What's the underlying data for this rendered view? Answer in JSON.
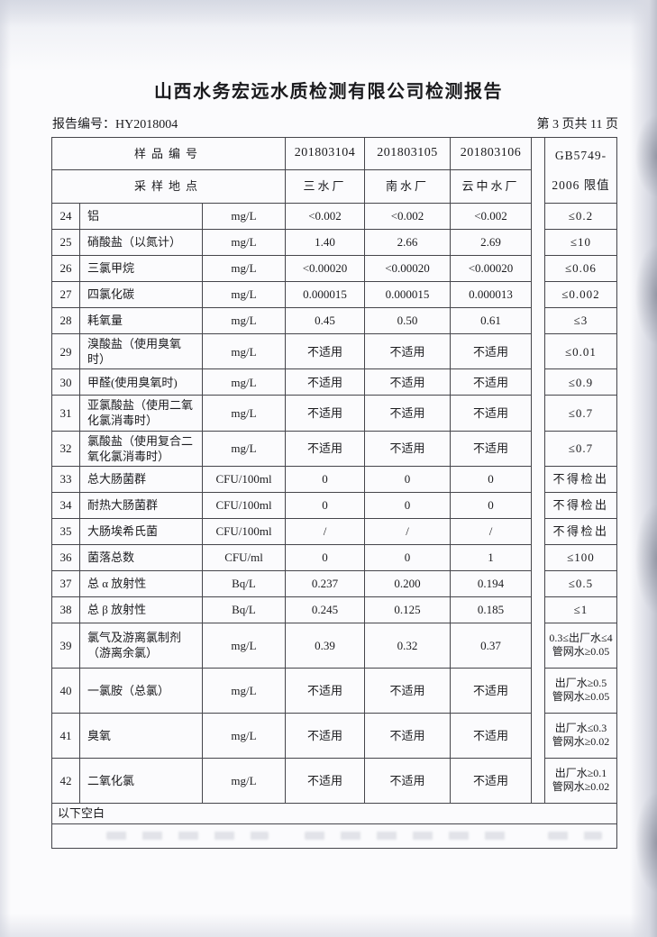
{
  "page": {
    "title": "山西水务宏远水质检测有限公司检测报告",
    "report_no_label": "报告编号：",
    "report_no": "HY2018004",
    "page_indicator": "第 3 页共 11 页"
  },
  "table": {
    "header": {
      "sample_id_label": "样品编号",
      "location_label": "采样地点",
      "sample_ids": [
        "201803104",
        "201803105",
        "201803106"
      ],
      "locations": [
        "三水厂",
        "南水厂",
        "云中水厂"
      ],
      "limit_line1": "GB5749-",
      "limit_line2": "2006 限值"
    },
    "rows": [
      {
        "no": "24",
        "name": "铝",
        "unit": "mg/L",
        "values": [
          "<0.002",
          "<0.002",
          "<0.002"
        ],
        "limit": "≤0.2"
      },
      {
        "no": "25",
        "name": "硝酸盐（以氮计）",
        "unit": "mg/L",
        "values": [
          "1.40",
          "2.66",
          "2.69"
        ],
        "limit": "≤10"
      },
      {
        "no": "26",
        "name": "三氯甲烷",
        "unit": "mg/L",
        "values": [
          "<0.00020",
          "<0.00020",
          "<0.00020"
        ],
        "limit": "≤0.06"
      },
      {
        "no": "27",
        "name": "四氯化碳",
        "unit": "mg/L",
        "values": [
          "0.000015",
          "0.000015",
          "0.000013"
        ],
        "limit": "≤0.002"
      },
      {
        "no": "28",
        "name": "耗氧量",
        "unit": "mg/L",
        "values": [
          "0.45",
          "0.50",
          "0.61"
        ],
        "limit": "≤3"
      },
      {
        "no": "29",
        "name": "溴酸盐（使用臭氧时）",
        "unit": "mg/L",
        "values": [
          "不适用",
          "不适用",
          "不适用"
        ],
        "limit": "≤0.01"
      },
      {
        "no": "30",
        "name": "甲醛(使用臭氧时)",
        "unit": "mg/L",
        "values": [
          "不适用",
          "不适用",
          "不适用"
        ],
        "limit": "≤0.9"
      },
      {
        "no": "31",
        "name": "亚氯酸盐（使用二氧化氯消毒时）",
        "unit": "mg/L",
        "values": [
          "不适用",
          "不适用",
          "不适用"
        ],
        "limit": "≤0.7"
      },
      {
        "no": "32",
        "name": "氯酸盐（使用复合二氧化氯消毒时）",
        "unit": "mg/L",
        "values": [
          "不适用",
          "不适用",
          "不适用"
        ],
        "limit": "≤0.7"
      },
      {
        "no": "33",
        "name": "总大肠菌群",
        "unit": "CFU/100ml",
        "values": [
          "0",
          "0",
          "0"
        ],
        "limit": "不得检出",
        "limit_zh": true
      },
      {
        "no": "34",
        "name": "耐热大肠菌群",
        "unit": "CFU/100ml",
        "values": [
          "0",
          "0",
          "0"
        ],
        "limit": "不得检出",
        "limit_zh": true
      },
      {
        "no": "35",
        "name": "大肠埃希氏菌",
        "unit": "CFU/100ml",
        "values": [
          "/",
          "/",
          "/"
        ],
        "limit": "不得检出",
        "limit_zh": true
      },
      {
        "no": "36",
        "name": "菌落总数",
        "unit": "CFU/ml",
        "values": [
          "0",
          "0",
          "1"
        ],
        "limit": "≤100"
      },
      {
        "no": "37",
        "name": "总 α 放射性",
        "unit": "Bq/L",
        "values": [
          "0.237",
          "0.200",
          "0.194"
        ],
        "limit": "≤0.5"
      },
      {
        "no": "38",
        "name": "总 β 放射性",
        "unit": "Bq/L",
        "values": [
          "0.245",
          "0.125",
          "0.185"
        ],
        "limit": "≤1"
      },
      {
        "no": "39",
        "name": "氯气及游离氯制剂（游离余氯）",
        "unit": "mg/L",
        "values": [
          "0.39",
          "0.32",
          "0.37"
        ],
        "limit": "0.3≤出厂水≤4",
        "limit2": "管网水≥0.05"
      },
      {
        "no": "40",
        "name": "一氯胺（总氯）",
        "unit": "mg/L",
        "values": [
          "不适用",
          "不适用",
          "不适用"
        ],
        "limit": "出厂水≥0.5",
        "limit2": "管网水≥0.05"
      },
      {
        "no": "41",
        "name": "臭氧",
        "unit": "mg/L",
        "values": [
          "不适用",
          "不适用",
          "不适用"
        ],
        "limit": "出厂水≤0.3",
        "limit2": "管网水≥0.02"
      },
      {
        "no": "42",
        "name": "二氧化氯",
        "unit": "mg/L",
        "values": [
          "不适用",
          "不适用",
          "不适用"
        ],
        "limit": "出厂水≥0.1",
        "limit2": "管网水≥0.02"
      }
    ],
    "footer_note": "以下空白"
  },
  "colors": {
    "border": "#45454b",
    "text": "#1b1b1e",
    "paper": "#fbfbfd"
  }
}
